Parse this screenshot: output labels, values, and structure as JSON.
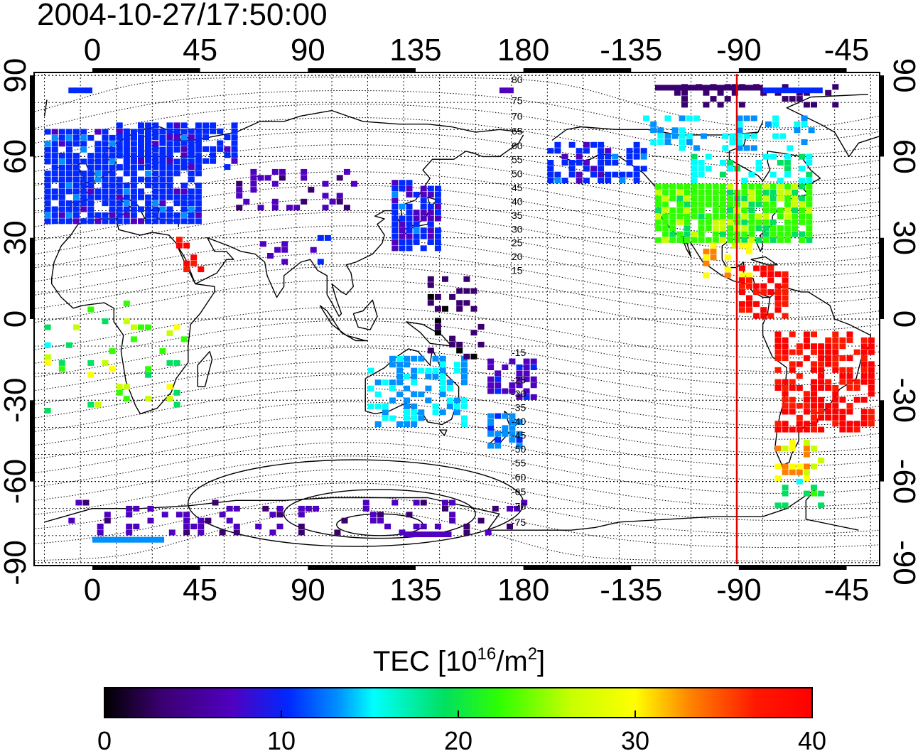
{
  "title": "2004-10-27/17:50:00",
  "map": {
    "lon_ticks_top": [
      "0",
      "45",
      "90",
      "135",
      "180",
      "-135",
      "-90",
      "-45"
    ],
    "lon_ticks_bottom": [
      "0",
      "45",
      "90",
      "135",
      "180",
      "-135",
      "-90",
      "-45"
    ],
    "lat_ticks_left": [
      "90",
      "60",
      "30",
      "0",
      "-30",
      "-60",
      "-90"
    ],
    "lat_ticks_right": [
      "90",
      "60",
      "30",
      "0",
      "-30",
      "-60",
      "-90"
    ],
    "contour_labels_north": [
      "80",
      "75",
      "70",
      "65",
      "60",
      "55",
      "50",
      "45",
      "40",
      "35",
      "30",
      "25",
      "20",
      "15"
    ],
    "contour_labels_south": [
      "15",
      "25",
      "30",
      "35",
      "40",
      "45",
      "50",
      "55",
      "60",
      "65",
      "70",
      "75"
    ],
    "terminator_longitude": -87,
    "terminator_color": "#e00000"
  },
  "colorbar": {
    "title_main": "TEC  [10",
    "title_sup1": "16",
    "title_mid": "/m",
    "title_sup2": "2",
    "title_end": "]",
    "min": 0,
    "max": 40,
    "tick_labels": [
      "0",
      "10",
      "20",
      "30",
      "40"
    ],
    "colors": [
      "#000000",
      "#3a0070",
      "#5000c0",
      "#0028ff",
      "#0090ff",
      "#00ffff",
      "#00e060",
      "#30ff00",
      "#c8ff00",
      "#ffff00",
      "#ff8000",
      "#ff1800",
      "#ff0000"
    ]
  }
}
